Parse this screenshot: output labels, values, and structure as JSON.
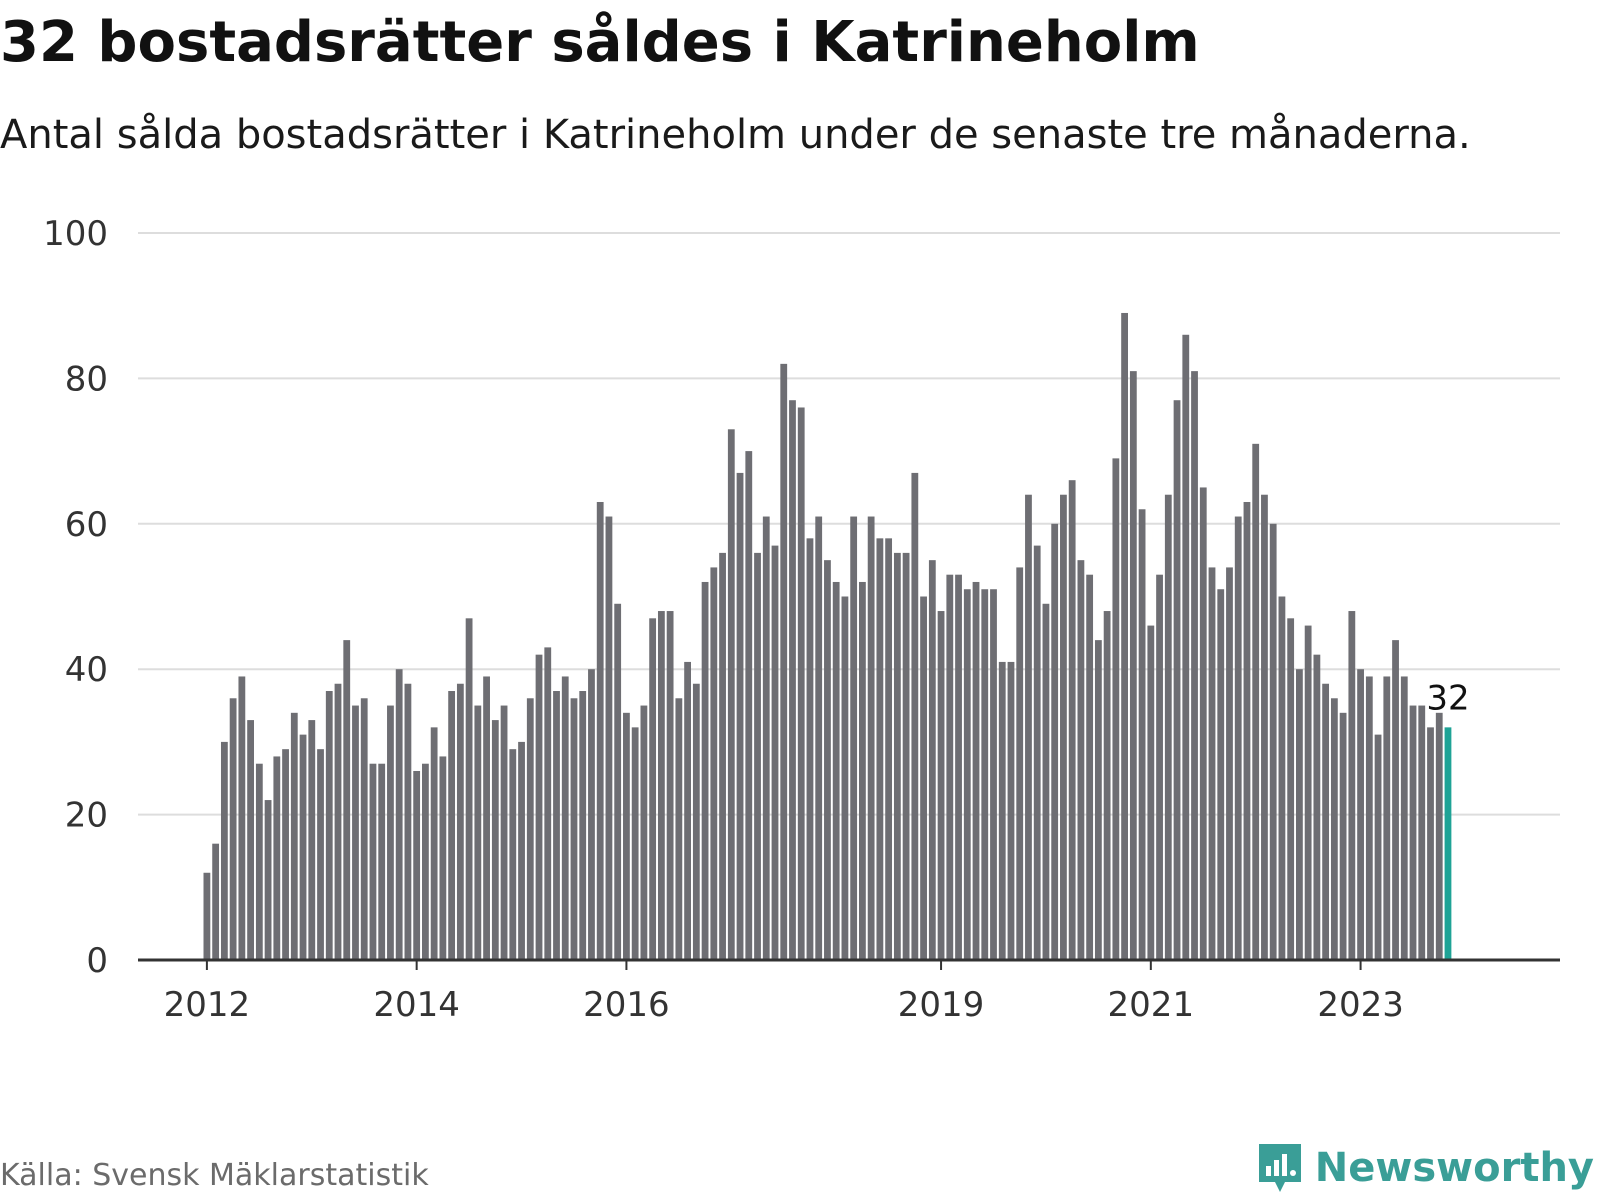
{
  "title": "32 bostadsrätter såldes i Katrineholm",
  "subtitle": "Antal sålda bostadsrätter i Katrineholm under de senaste tre månaderna.",
  "source": "Källa: Svensk Mäklarstatistik",
  "brand": {
    "name": "Newsworthy",
    "icon": "newsworthy-logo-icon",
    "color": "#3a9e97"
  },
  "colors": {
    "bar": "#6e6e73",
    "highlight": "#1fa396",
    "grid": "#dddddd",
    "axis": "#333333"
  },
  "chart_data": {
    "type": "bar",
    "ylim": [
      0,
      100
    ],
    "yticks": [
      "0",
      "20",
      "40",
      "60",
      "80",
      "100"
    ],
    "grid": true,
    "x_axis_labels": [
      {
        "label": "2012",
        "index": 0
      },
      {
        "label": "2014",
        "index": 24
      },
      {
        "label": "2016",
        "index": 48
      },
      {
        "label": "2019",
        "index": 84
      },
      {
        "label": "2021",
        "index": 108
      },
      {
        "label": "2023",
        "index": 132
      }
    ],
    "values": [
      12,
      16,
      30,
      36,
      39,
      33,
      27,
      22,
      28,
      29,
      34,
      31,
      33,
      29,
      37,
      38,
      44,
      35,
      36,
      27,
      27,
      35,
      40,
      38,
      26,
      27,
      32,
      28,
      37,
      38,
      47,
      35,
      39,
      33,
      35,
      29,
      30,
      36,
      42,
      43,
      37,
      39,
      36,
      37,
      40,
      63,
      61,
      49,
      34,
      32,
      35,
      47,
      48,
      48,
      36,
      41,
      38,
      52,
      54,
      56,
      73,
      67,
      70,
      56,
      61,
      57,
      82,
      77,
      76,
      58,
      61,
      55,
      52,
      50,
      61,
      52,
      61,
      58,
      58,
      56,
      56,
      67,
      50,
      55,
      48,
      53,
      53,
      51,
      52,
      51,
      51,
      41,
      41,
      54,
      64,
      57,
      49,
      60,
      64,
      66,
      55,
      53,
      44,
      48,
      69,
      89,
      81,
      62,
      46,
      53,
      64,
      77,
      86,
      81,
      65,
      54,
      51,
      54,
      61,
      63,
      71,
      64,
      60,
      50,
      47,
      40,
      46,
      42,
      38,
      36,
      34,
      48,
      40,
      39,
      31,
      39,
      44,
      39,
      35,
      35,
      32,
      34,
      32
    ],
    "highlight_index": 142,
    "highlight_label": "32"
  }
}
